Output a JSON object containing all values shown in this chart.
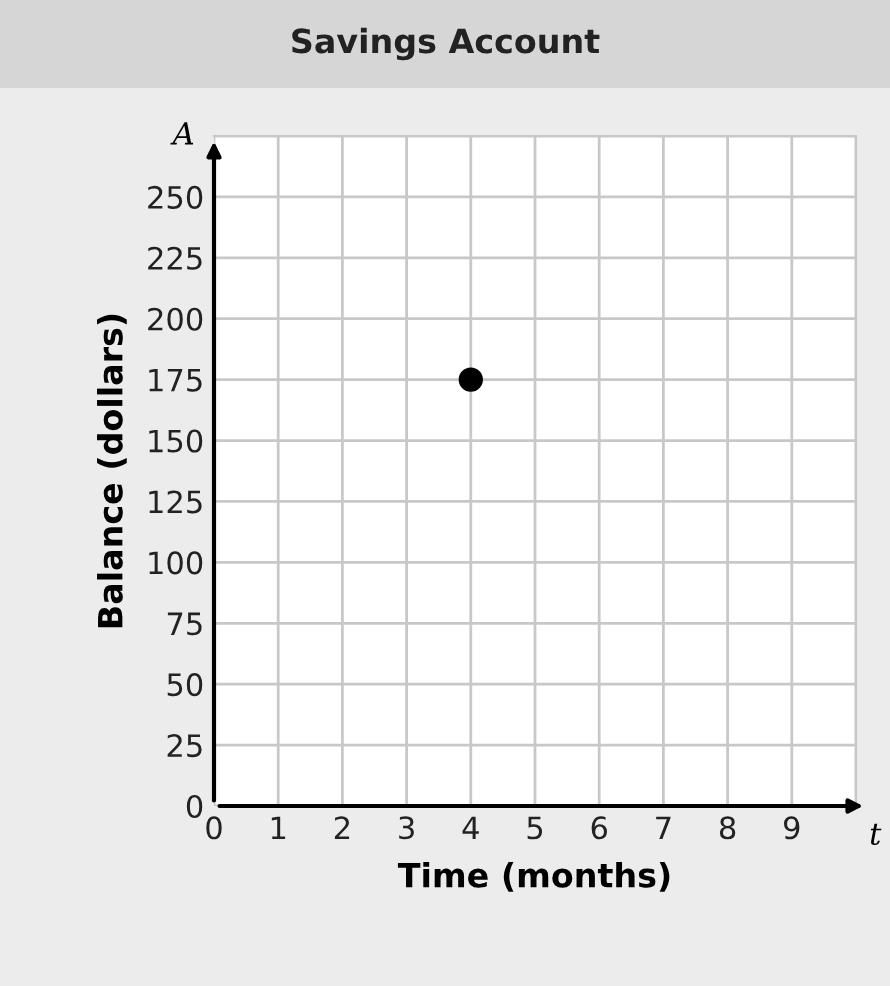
{
  "chart_data": {
    "type": "scatter",
    "title": "Savings Account",
    "xlabel": "Time (months)",
    "ylabel": "Balance (dollars)",
    "annotations": [
      "A",
      "t"
    ],
    "x": [
      4
    ],
    "values": [
      175
    ],
    "color": "#000000",
    "marker": "circle",
    "xlim": [
      0,
      10
    ],
    "xticks": [
      0,
      1,
      2,
      3,
      4,
      5,
      6,
      7,
      8,
      9,
      {
        "value": 10,
        "label": null
      }
    ],
    "ylim": [
      0,
      275
    ],
    "yticks": [
      0,
      25,
      50,
      75,
      100,
      125,
      150,
      175,
      200,
      225,
      250,
      {
        "value": 275,
        "label": null
      }
    ],
    "grid": true,
    "legend": false
  }
}
